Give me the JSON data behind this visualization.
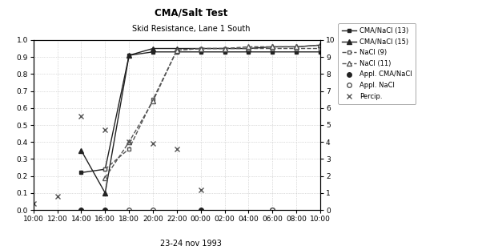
{
  "title": "CMA/Salt Test",
  "subtitle": "Skid Resistance, Lane 1 South",
  "xlabel": "23-24 nov 1993",
  "xlim": [
    0,
    24
  ],
  "ylim_left": [
    0,
    1
  ],
  "ylim_right": [
    0,
    10
  ],
  "xtick_labels": [
    "10:00",
    "12:00",
    "14:00",
    "16:00",
    "18:00",
    "20:00",
    "22:00",
    "00:00",
    "02:00",
    "04:00",
    "06:00",
    "08:00",
    "10:00"
  ],
  "xtick_positions": [
    0,
    2,
    4,
    6,
    8,
    10,
    12,
    14,
    16,
    18,
    20,
    22,
    24
  ],
  "ytick_left": [
    0,
    0.1,
    0.2,
    0.3,
    0.4,
    0.5,
    0.6,
    0.7,
    0.8,
    0.9,
    1.0
  ],
  "ytick_right": [
    0,
    1,
    2,
    3,
    4,
    5,
    6,
    7,
    8,
    9,
    10
  ],
  "series_CMA_NaCl_13": {
    "label": "CMA/NaCl (13)",
    "x": [
      4,
      6,
      8,
      10,
      12,
      14,
      16,
      18,
      20,
      22,
      24
    ],
    "y": [
      0.22,
      0.24,
      0.91,
      0.93,
      0.93,
      0.93,
      0.93,
      0.93,
      0.93,
      0.93,
      0.93
    ],
    "color": "#222222",
    "linestyle": "-",
    "marker": "s",
    "markersize": 3.5
  },
  "series_CMA_NaCl_15": {
    "label": "CMA/NaCl (15)",
    "x": [
      4,
      6,
      8,
      10,
      12,
      14,
      16,
      18,
      20,
      22,
      24
    ],
    "y": [
      0.35,
      0.1,
      0.91,
      0.95,
      0.95,
      0.95,
      0.95,
      0.95,
      0.96,
      0.96,
      0.97
    ],
    "color": "#222222",
    "linestyle": "-",
    "marker": "^",
    "markersize": 4.5
  },
  "series_NaCl_9": {
    "label": "NaCl (9)",
    "x": [
      6,
      8,
      10,
      12,
      14,
      16,
      18,
      20,
      22,
      24
    ],
    "y": [
      0.24,
      0.36,
      0.65,
      0.94,
      0.95,
      0.95,
      0.95,
      0.95,
      0.95,
      0.95
    ],
    "color": "#555555",
    "linestyle": "--",
    "marker": "s",
    "markersize": 3.5,
    "markerfacecolor": "white"
  },
  "series_NaCl_11": {
    "label": "NaCl (11)",
    "x": [
      6,
      8,
      10,
      12,
      14,
      16,
      18,
      20,
      22,
      24
    ],
    "y": [
      0.19,
      0.4,
      0.64,
      0.94,
      0.95,
      0.95,
      0.96,
      0.96,
      0.96,
      0.97
    ],
    "color": "#555555",
    "linestyle": "--",
    "marker": "^",
    "markersize": 4.5,
    "markerfacecolor": "white"
  },
  "appl_CMA_NaCl": {
    "label": "Appl. CMA/NaCl",
    "x": [
      4,
      6,
      14,
      20
    ],
    "y": [
      0.0,
      0.0,
      0.0,
      0.0
    ],
    "color": "#222222",
    "marker": "o",
    "markersize": 4
  },
  "appl_NaCl": {
    "label": "Appl. NaCl",
    "x": [
      8,
      10,
      20
    ],
    "y": [
      0.0,
      0.0,
      0.0
    ],
    "color": "#555555",
    "marker": "o",
    "markersize": 4,
    "markerfacecolor": "white"
  },
  "percip": {
    "label": "Percip.",
    "x": [
      0,
      2,
      4,
      6,
      8,
      10,
      12,
      14
    ],
    "y": [
      0.04,
      0.08,
      0.55,
      0.47,
      0.4,
      0.39,
      0.36,
      0.12
    ],
    "color": "#555555",
    "marker": "x",
    "markersize": 4
  },
  "background_color": "#ffffff",
  "grid_color": "#aaaaaa"
}
